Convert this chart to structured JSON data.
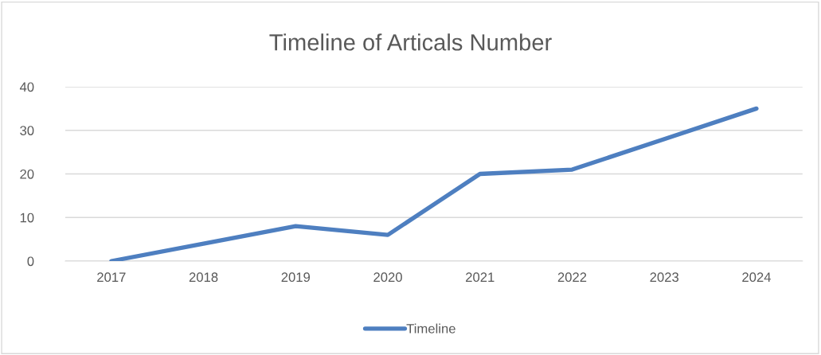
{
  "chart_data": {
    "type": "line",
    "title": "Timeline of Articals Number",
    "categories": [
      "2017",
      "2018",
      "2019",
      "2020",
      "2021",
      "2022",
      "2023",
      "2024"
    ],
    "series": [
      {
        "name": "Timeline",
        "color": "#4e7fc0",
        "values": [
          0,
          4,
          8,
          6,
          20,
          21,
          28,
          35
        ]
      }
    ],
    "ylim": [
      0,
      40
    ],
    "yticks": [
      0,
      10,
      20,
      30,
      40
    ],
    "grid": "y",
    "legend": "bottom",
    "marker": "none",
    "line_style": "solid"
  }
}
